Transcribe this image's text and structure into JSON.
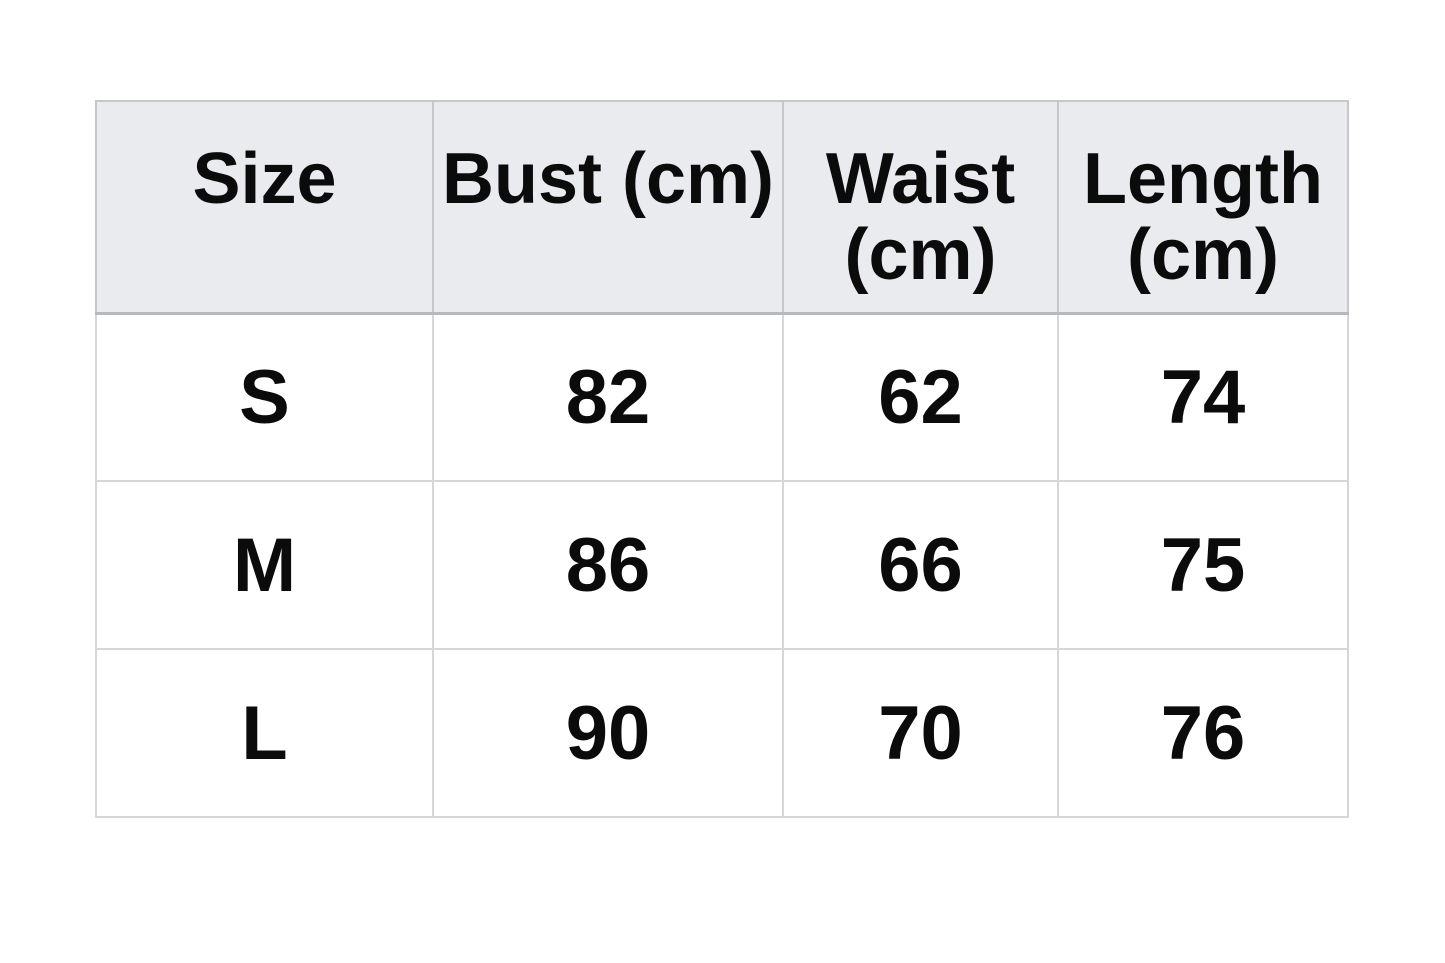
{
  "chart_data": {
    "type": "table",
    "title": "",
    "columns": [
      {
        "key": "size",
        "label": "Size"
      },
      {
        "key": "bust",
        "label": "Bust (cm)"
      },
      {
        "key": "waist",
        "label": "Waist (cm)"
      },
      {
        "key": "length",
        "label": "Length (cm)"
      }
    ],
    "rows": [
      {
        "size": "S",
        "bust": 82,
        "waist": 62,
        "length": 74
      },
      {
        "size": "M",
        "bust": 86,
        "waist": 66,
        "length": 75
      },
      {
        "size": "L",
        "bust": 90,
        "waist": 70,
        "length": 76
      }
    ]
  },
  "colors": {
    "page_bg": "#ffffff",
    "header_bg": "#e9ebee",
    "body_bg": "#ffffff",
    "border_body": "#d5d7da",
    "border_header": "#c5c8cb",
    "border_header_bottom": "#b7babd",
    "text": "#0b0b0c"
  }
}
